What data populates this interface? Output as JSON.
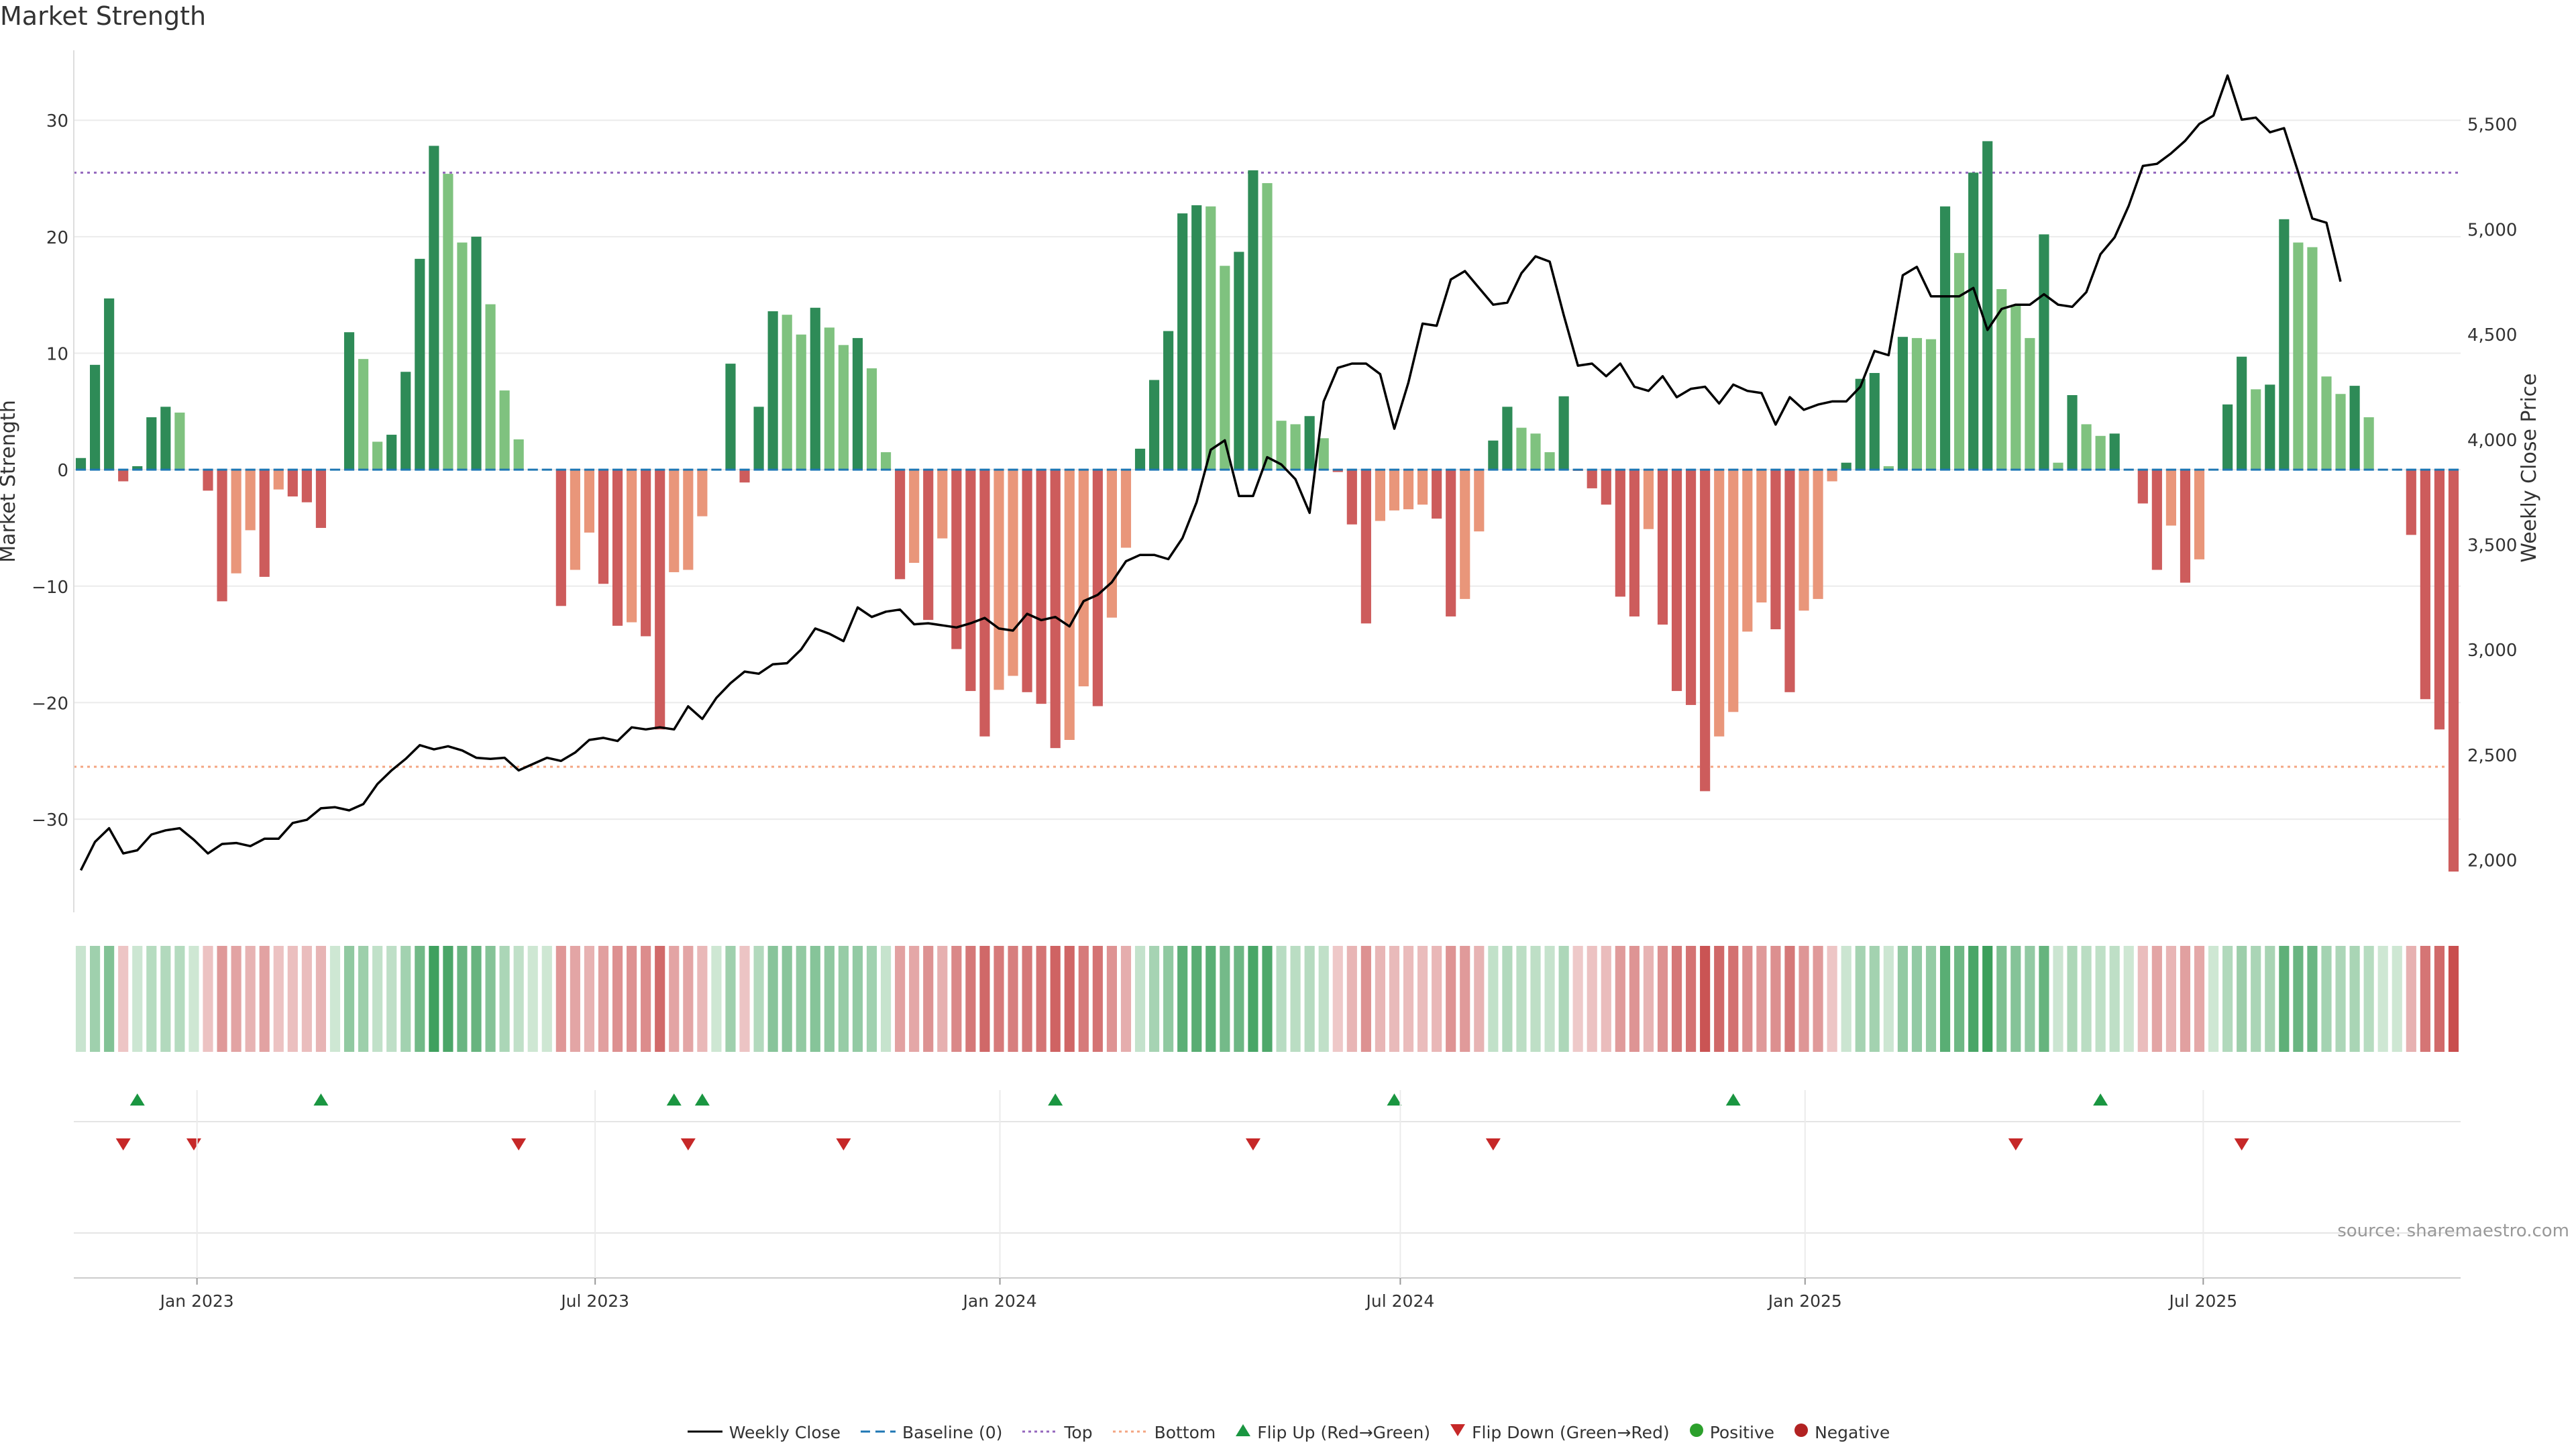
{
  "title": "Market Strength",
  "source": "source: sharemaestro.com",
  "chart_data": {
    "type": "bar",
    "title": "Market Strength",
    "ylabel": "Market Strength",
    "ylabel_right": "Weekly Close Price",
    "ylim": [
      -38,
      36
    ],
    "ylim_right": [
      1750,
      5850
    ],
    "x_start": "2022-11-06",
    "x_end": "2025-10-26",
    "x_ticks": [
      "Jan 2023",
      "Jul 2023",
      "Jan 2024",
      "Jul 2024",
      "Jan 2025",
      "Jul 2025"
    ],
    "x_tick_dates": [
      "2023-01-01",
      "2023-07-01",
      "2024-01-01",
      "2024-07-01",
      "2025-01-01",
      "2025-07-01"
    ],
    "y_ticks": [
      -30,
      -20,
      -10,
      0,
      10,
      20,
      30
    ],
    "y_ticks_right": [
      2000,
      2500,
      3000,
      3500,
      4000,
      4500,
      5000,
      5500
    ],
    "y_ticks_right_labels": [
      "2,000",
      "2,500",
      "3,000",
      "3,500",
      "4,000",
      "4,500",
      "5,000",
      "5,500"
    ],
    "top_threshold": 25.5,
    "bottom_threshold": -25.5,
    "bars": [
      1,
      9,
      14.7,
      -1,
      0.3,
      4.5,
      5.4,
      4.9,
      0,
      -1.8,
      -11.3,
      -8.9,
      -5.2,
      -9.2,
      -1.7,
      -2.3,
      -2.8,
      -5.0,
      0,
      11.8,
      9.5,
      2.4,
      3.0,
      8.4,
      18.1,
      27.8,
      25.4,
      19.5,
      20.0,
      14.2,
      6.8,
      2.6,
      0,
      0,
      -11.7,
      -8.6,
      -5.4,
      -9.8,
      -13.4,
      -13.1,
      -14.3,
      -22.3,
      -8.8,
      -8.6,
      -4.0,
      0,
      9.1,
      -1.1,
      5.4,
      13.6,
      13.3,
      11.6,
      13.9,
      12.2,
      10.7,
      11.3,
      8.7,
      1.5,
      -9.4,
      -8.0,
      -12.9,
      -5.9,
      -15.4,
      -19.0,
      -22.9,
      -18.9,
      -17.7,
      -19.1,
      -20.1,
      -23.9,
      -23.2,
      -18.6,
      -20.3,
      -12.7,
      -6.7,
      1.8,
      7.7,
      11.9,
      22.0,
      22.7,
      22.6,
      17.5,
      18.7,
      25.7,
      24.6,
      4.2,
      3.9,
      4.6,
      2.7,
      -0.2,
      -4.7,
      -13.2,
      -4.4,
      -3.5,
      -3.4,
      -3.0,
      -4.2,
      -12.6,
      -11.1,
      -5.3,
      2.5,
      5.4,
      3.6,
      3.1,
      1.5,
      6.3,
      -0.1,
      -1.6,
      -3.0,
      -10.9,
      -12.6,
      -5.1,
      -13.3,
      -19.0,
      -20.2,
      -27.6,
      -22.9,
      -20.8,
      -13.9,
      -11.4,
      -13.7,
      -19.1,
      -12.1,
      -11.1,
      -1.0,
      0.6,
      7.8,
      8.3,
      0.3,
      11.4,
      11.3,
      11.2,
      22.6,
      18.6,
      25.5,
      28.2,
      15.5,
      14.1,
      11.3,
      20.2,
      0.6,
      6.4,
      3.9,
      2.9,
      3.1,
      0,
      -2.9,
      -8.6,
      -4.8,
      -9.7,
      -7.7,
      0,
      5.6,
      9.7,
      6.9,
      7.3,
      21.5,
      19.5,
      19.1,
      8.0,
      6.5,
      7.2,
      4.5,
      0,
      0,
      -5.6,
      -19.7,
      -22.3,
      -34.5
    ],
    "close": [
      1950,
      2085,
      2150,
      2030,
      2045,
      2120,
      2140,
      2150,
      2095,
      2030,
      2075,
      2080,
      2065,
      2100,
      2100,
      2175,
      2190,
      2245,
      2250,
      2235,
      2265,
      2360,
      2425,
      2480,
      2545,
      2525,
      2540,
      2520,
      2485,
      2480,
      2485,
      2425,
      2455,
      2485,
      2470,
      2510,
      2570,
      2580,
      2565,
      2630,
      2620,
      2630,
      2620,
      2730,
      2670,
      2770,
      2840,
      2895,
      2885,
      2930,
      2935,
      3000,
      3100,
      3075,
      3040,
      3200,
      3155,
      3180,
      3190,
      3120,
      3125,
      3115,
      3105,
      3125,
      3150,
      3100,
      3090,
      3170,
      3140,
      3155,
      3110,
      3230,
      3260,
      3320,
      3420,
      3450,
      3450,
      3430,
      3530,
      3700,
      3950,
      3995,
      3730,
      3730,
      3915,
      3880,
      3810,
      3650,
      4180,
      4340,
      4360,
      4360,
      4310,
      4050,
      4270,
      4550,
      4540,
      4760,
      4800,
      4720,
      4640,
      4650,
      4790,
      4870,
      4845,
      4590,
      4350,
      4360,
      4300,
      4360,
      4250,
      4230,
      4300,
      4200,
      4240,
      4250,
      4170,
      4260,
      4230,
      4220,
      4070,
      4200,
      4140,
      4165,
      4180,
      4180,
      4250,
      4420,
      4400,
      4780,
      4820,
      4680,
      4680,
      4680,
      4720,
      4520,
      4620,
      4640,
      4640,
      4690,
      4640,
      4630,
      4700,
      4880,
      4960,
      5110,
      5300,
      5310,
      5360,
      5420,
      5500,
      5540,
      5730,
      5520,
      5530,
      5460,
      5480,
      5270,
      5050,
      5030,
      4750
    ],
    "flip_up_weeks": [
      4,
      17,
      42,
      44,
      69,
      93,
      117,
      143
    ],
    "flip_down_weeks": [
      3,
      8,
      31,
      43,
      54,
      83,
      100,
      137,
      153
    ],
    "legend": [
      "Weekly Close",
      "Baseline (0)",
      "Top",
      "Bottom",
      "Flip Up (Red→Green)",
      "Flip Down (Green→Red)",
      "Positive",
      "Negative"
    ],
    "colors": {
      "pos_dark": "#2e8b57",
      "pos_light": "#7fc27f",
      "neg_dark": "#cd5c5c",
      "neg_light": "#e9967a",
      "top": "#9467bd",
      "bottom": "#f4a582",
      "baseline": "#1f77b4",
      "close": "#000000",
      "flip_up": "#1a9641",
      "flip_down": "#c62828",
      "positive_dot": "#2ca02c",
      "negative_dot": "#b22222"
    }
  }
}
